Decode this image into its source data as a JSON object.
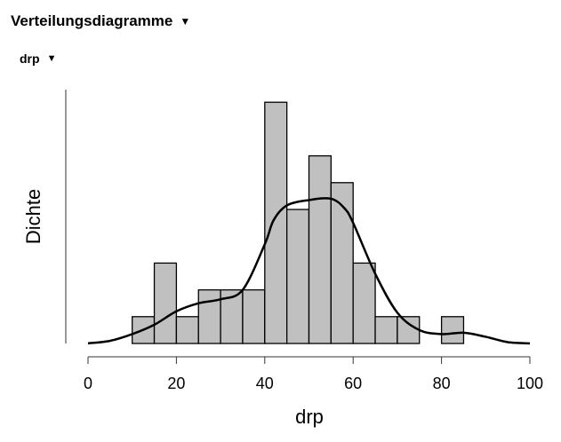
{
  "section": {
    "title": "Verteilungsdiagramme",
    "caret_icon": "triangle-down-icon"
  },
  "subsection": {
    "title": "drp",
    "caret_icon": "triangle-down-icon"
  },
  "chart_data": {
    "type": "bar",
    "subtype": "histogram-with-density",
    "xlabel": "drp",
    "ylabel": "Dichte",
    "xlim": [
      0,
      100
    ],
    "xticks": [
      0,
      20,
      40,
      60,
      80,
      100
    ],
    "bin_width": 5,
    "bins": [
      {
        "start": 10,
        "end": 15,
        "count": 1
      },
      {
        "start": 15,
        "end": 20,
        "count": 3
      },
      {
        "start": 20,
        "end": 25,
        "count": 1
      },
      {
        "start": 25,
        "end": 30,
        "count": 2
      },
      {
        "start": 30,
        "end": 35,
        "count": 2
      },
      {
        "start": 35,
        "end": 40,
        "count": 2
      },
      {
        "start": 40,
        "end": 45,
        "count": 9
      },
      {
        "start": 45,
        "end": 50,
        "count": 5
      },
      {
        "start": 50,
        "end": 55,
        "count": 7
      },
      {
        "start": 55,
        "end": 60,
        "count": 6
      },
      {
        "start": 60,
        "end": 65,
        "count": 3
      },
      {
        "start": 65,
        "end": 70,
        "count": 1
      },
      {
        "start": 70,
        "end": 75,
        "count": 1
      },
      {
        "start": 75,
        "end": 80,
        "count": 0
      },
      {
        "start": 80,
        "end": 85,
        "count": 1
      }
    ],
    "density_curve": {
      "x": [
        0,
        5,
        10,
        15,
        20,
        25,
        30,
        35,
        40,
        42,
        45,
        50,
        55,
        58,
        60,
        65,
        70,
        75,
        80,
        85,
        90,
        95,
        100
      ],
      "y": [
        0.005,
        0.1,
        0.35,
        0.7,
        1.2,
        1.5,
        1.65,
        2.0,
        3.7,
        4.6,
        5.15,
        5.35,
        5.4,
        5.05,
        4.5,
        2.6,
        1.15,
        0.5,
        0.35,
        0.4,
        0.25,
        0.05,
        0.005
      ]
    },
    "bar_color": "#c0c0c0",
    "bar_edge_color": "#000000",
    "curve_color": "#000000",
    "grid": false
  }
}
